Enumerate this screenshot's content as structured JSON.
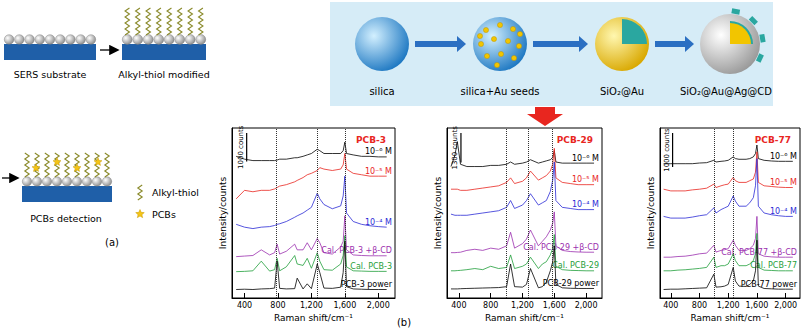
{
  "panel_a": {
    "label": "(a)",
    "steps": [
      "SERS substrate",
      "Alkyl-thiol modified",
      "PCBs detection"
    ],
    "legend": [
      "Alkyl-thiol",
      "PCBs"
    ]
  },
  "panel_b": {
    "label": "(b)",
    "synthesis_steps": [
      "silica",
      "silica+Au seeds",
      "SiO₂@Au",
      "SiO₂@Au@Ag@CD"
    ]
  },
  "chart_data": [
    {
      "type": "line",
      "title": "PCB-3",
      "x_label": "Raman shift/cm⁻¹",
      "y_label": "Intensity/counts",
      "xlim": [
        250,
        2200
      ],
      "xticks": [
        400,
        800,
        1200,
        1600,
        2000
      ],
      "ylim": [
        0,
        6000
      ],
      "grid": false,
      "tick_labels": "x",
      "scale_bar": {
        "value": 1000,
        "label": "1000 counts"
      },
      "reference_lines": [
        780,
        1270,
        1600
      ],
      "x": [
        300,
        400,
        500,
        600,
        700,
        760,
        790,
        820,
        900,
        1000,
        1030,
        1100,
        1150,
        1200,
        1270,
        1300,
        1350,
        1450,
        1550,
        1580,
        1600,
        1620,
        1700,
        1800,
        1900,
        2000,
        2100
      ],
      "series": [
        {
          "name": "10⁻⁶ M",
          "color": "#000000",
          "values": [
            5000,
            4900,
            4850,
            4850,
            4850,
            4850,
            4870,
            4900,
            4900,
            4950,
            4950,
            5000,
            5050,
            5100,
            5250,
            5200,
            5100,
            5100,
            5100,
            5200,
            5500,
            5100,
            5050,
            5000,
            5000,
            4980,
            4980
          ]
        },
        {
          "name": "10⁻⁵ M",
          "color": "#e8261f",
          "values": [
            3500,
            3800,
            3750,
            3800,
            3800,
            3850,
            3900,
            3950,
            4000,
            4100,
            4150,
            4250,
            4350,
            4400,
            4500,
            4600,
            4550,
            4500,
            4550,
            4700,
            5100,
            4550,
            4400,
            4350,
            4300,
            4300,
            4300
          ]
        },
        {
          "name": "10⁻⁴ M",
          "color": "#2b2bd6",
          "values": [
            2600,
            2500,
            2450,
            2500,
            2520,
            2560,
            2600,
            2620,
            2700,
            2850,
            2900,
            3000,
            3100,
            3200,
            3700,
            3500,
            3300,
            3150,
            3250,
            3600,
            4300,
            3000,
            2700,
            2600,
            2550,
            2520,
            2500
          ]
        },
        {
          "name": "Cal. PCB-3 +β-CD",
          "color": "#9b2fae",
          "values": [
            1460,
            1480,
            1500,
            1700,
            1520,
            1600,
            1900,
            1550,
            1650,
            1900,
            1700,
            1700,
            1950,
            1700,
            2100,
            1950,
            1600,
            1550,
            1800,
            2000,
            2900,
            1700,
            1520,
            1500,
            1490,
            1490,
            1490
          ]
        },
        {
          "name": "Cal. PCB-3",
          "color": "#1f9e3a",
          "values": [
            930,
            940,
            960,
            1300,
            950,
            1000,
            1400,
            960,
            1100,
            1500,
            1200,
            1150,
            1400,
            1050,
            1600,
            1300,
            1000,
            980,
            1200,
            1500,
            2200,
            1100,
            960,
            950,
            940,
            940,
            940
          ]
        },
        {
          "name": "PCB-3 power",
          "color": "#000000",
          "values": [
            300,
            310,
            300,
            320,
            330,
            350,
            1300,
            340,
            320,
            330,
            700,
            320,
            500,
            330,
            1200,
            900,
            350,
            340,
            380,
            900,
            2000,
            400,
            320,
            310,
            300,
            300,
            300
          ]
        }
      ]
    },
    {
      "type": "line",
      "title": "PCB-29",
      "x_label": "Raman shift/cm⁻¹",
      "y_label": "Intensity/counts",
      "xlim": [
        250,
        2200
      ],
      "xticks": [
        400,
        800,
        1200,
        1600,
        2000
      ],
      "ylim": [
        0,
        7500
      ],
      "grid": false,
      "tick_labels": "x",
      "scale_bar": {
        "value": 1300,
        "label": "1300 counts"
      },
      "reference_lines": [
        1000,
        1270,
        1580
      ],
      "x": [
        300,
        350,
        380,
        420,
        500,
        600,
        700,
        800,
        900,
        1000,
        1050,
        1100,
        1200,
        1250,
        1300,
        1400,
        1450,
        1500,
        1550,
        1580,
        1600,
        1620,
        1700,
        1800,
        1900,
        2000,
        2100
      ],
      "series": [
        {
          "name": "10⁻⁶ M",
          "color": "#000000",
          "values": [
            5800,
            6300,
            6900,
            5900,
            5800,
            5800,
            5800,
            5850,
            5850,
            5900,
            6000,
            5900,
            5950,
            6000,
            6100,
            5950,
            6000,
            6050,
            6100,
            6200,
            6500,
            6000,
            5950,
            5950,
            5950,
            5950,
            5950
          ]
        },
        {
          "name": "10⁻⁵ M",
          "color": "#e8261f",
          "values": [
            4800,
            4800,
            4800,
            4750,
            4750,
            4800,
            4850,
            4900,
            4950,
            5100,
            5300,
            5050,
            5150,
            5300,
            5600,
            5200,
            5300,
            5400,
            5600,
            5900,
            6600,
            5300,
            5100,
            5050,
            5000,
            5000,
            5000
          ]
        },
        {
          "name": "10⁻⁴ M",
          "color": "#2b2bd6",
          "values": [
            3700,
            3650,
            3650,
            3650,
            3650,
            3700,
            3750,
            3800,
            3850,
            4000,
            4300,
            3950,
            4100,
            4300,
            4600,
            4100,
            4200,
            4300,
            4700,
            5200,
            6000,
            4300,
            4000,
            3950,
            3900,
            3900,
            3900
          ]
        },
        {
          "name": "Cal. PCB-29 +β-CD",
          "color": "#9b2fae",
          "values": [
            2000,
            2000,
            2010,
            2020,
            2100,
            2150,
            2100,
            2200,
            2150,
            2300,
            2900,
            2200,
            2400,
            2600,
            3000,
            2300,
            2500,
            2700,
            3000,
            3300,
            3800,
            2300,
            2100,
            2050,
            2030,
            2020,
            2020
          ]
        },
        {
          "name": "Cal. PCB-29",
          "color": "#1f9e3a",
          "values": [
            1200,
            1200,
            1210,
            1220,
            1250,
            1300,
            1250,
            1400,
            1300,
            1350,
            1900,
            1300,
            1400,
            1500,
            1800,
            1300,
            1500,
            1600,
            1900,
            2200,
            2800,
            1400,
            1250,
            1220,
            1210,
            1200,
            1200
          ]
        },
        {
          "name": "PCB-29 power",
          "color": "#000000",
          "values": [
            400,
            400,
            400,
            410,
            420,
            430,
            440,
            450,
            460,
            500,
            1500,
            500,
            480,
            600,
            1300,
            450,
            500,
            700,
            1200,
            1600,
            2300,
            600,
            450,
            430,
            420,
            420,
            420
          ]
        }
      ]
    },
    {
      "type": "line",
      "title": "PCB-77",
      "x_label": "Raman shift/cm⁻¹",
      "y_label": "Intensity/counts",
      "xlim": [
        250,
        2200
      ],
      "xticks": [
        400,
        800,
        1200,
        1600,
        2000
      ],
      "ylim": [
        0,
        5000
      ],
      "grid": false,
      "tick_labels": "x",
      "scale_bar": {
        "value": 1000,
        "label": "1000 counts"
      },
      "reference_lines": [
        1000,
        1270
      ],
      "x": [
        300,
        400,
        500,
        600,
        700,
        800,
        900,
        1000,
        1030,
        1100,
        1150,
        1200,
        1270,
        1300,
        1350,
        1450,
        1500,
        1550,
        1580,
        1600,
        1620,
        1700,
        1800,
        1900,
        2000,
        2100
      ],
      "series": [
        {
          "name": "10⁻⁶ M",
          "color": "#000000",
          "values": [
            3950,
            3950,
            3950,
            3950,
            3950,
            3970,
            3980,
            4050,
            4000,
            4020,
            4030,
            4050,
            4150,
            4100,
            4080,
            4080,
            4100,
            4150,
            4250,
            4500,
            4100,
            4050,
            4030,
            4020,
            4020,
            4020
          ]
        },
        {
          "name": "10⁻⁵ M",
          "color": "#e8261f",
          "values": [
            3200,
            3150,
            3150,
            3150,
            3180,
            3200,
            3230,
            3350,
            3250,
            3300,
            3330,
            3350,
            3550,
            3450,
            3400,
            3400,
            3450,
            3500,
            3700,
            4300,
            3400,
            3300,
            3280,
            3260,
            3250,
            3250
          ]
        },
        {
          "name": "10⁻⁴ M",
          "color": "#2b2bd6",
          "values": [
            2400,
            2350,
            2350,
            2350,
            2380,
            2420,
            2450,
            2650,
            2500,
            2600,
            2650,
            2700,
            3000,
            2850,
            2700,
            2700,
            2800,
            2950,
            3300,
            4100,
            2700,
            2500,
            2450,
            2420,
            2400,
            2400
          ]
        },
        {
          "name": "Cal. PCB-77 +β-CD",
          "color": "#9b2fae",
          "values": [
            1200,
            1200,
            1220,
            1230,
            1260,
            1300,
            1320,
            1550,
            1350,
            1400,
            1420,
            1450,
            1700,
            1550,
            1400,
            1400,
            1450,
            1550,
            1750,
            2400,
            1300,
            1230,
            1210,
            1200,
            1200,
            1200
          ]
        },
        {
          "name": "Cal. PCB-77",
          "color": "#1f9e3a",
          "values": [
            800,
            800,
            820,
            830,
            850,
            870,
            900,
            1200,
            900,
            950,
            950,
            1000,
            1300,
            1100,
            950,
            950,
            1000,
            1100,
            1300,
            1900,
            900,
            820,
            810,
            800,
            800,
            800
          ]
        },
        {
          "name": "PCB-77 power",
          "color": "#000000",
          "values": [
            250,
            260,
            260,
            270,
            280,
            290,
            300,
            700,
            320,
            330,
            350,
            400,
            900,
            500,
            350,
            340,
            400,
            500,
            800,
            1700,
            350,
            280,
            270,
            260,
            260,
            260
          ]
        }
      ]
    }
  ]
}
